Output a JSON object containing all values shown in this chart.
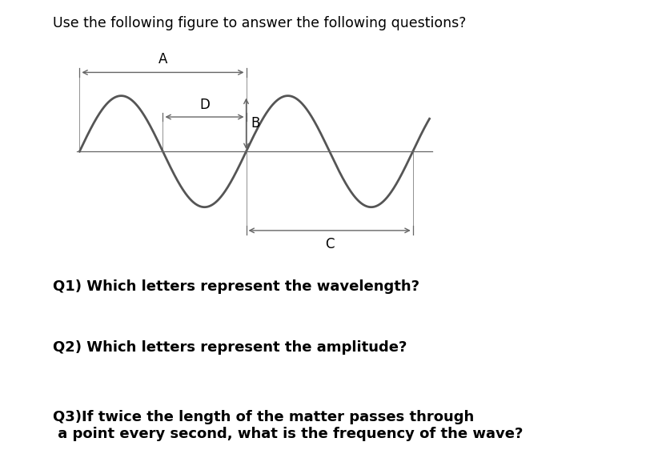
{
  "title": "Use the following figure to answer the following questions?",
  "title_fontsize": 12.5,
  "questions": [
    "Q1) Which letters represent the wavelength?",
    "Q2) Which letters represent the amplitude?",
    "Q3)If twice the length of the matter passes through\n a point every second, what is the frequency of the wave?"
  ],
  "q_fontsize": 13,
  "wave_color": "#555555",
  "wave_linewidth": 2.0,
  "annotation_color": "#666666",
  "annotation_fontsize": 11,
  "background_color": "#ffffff"
}
